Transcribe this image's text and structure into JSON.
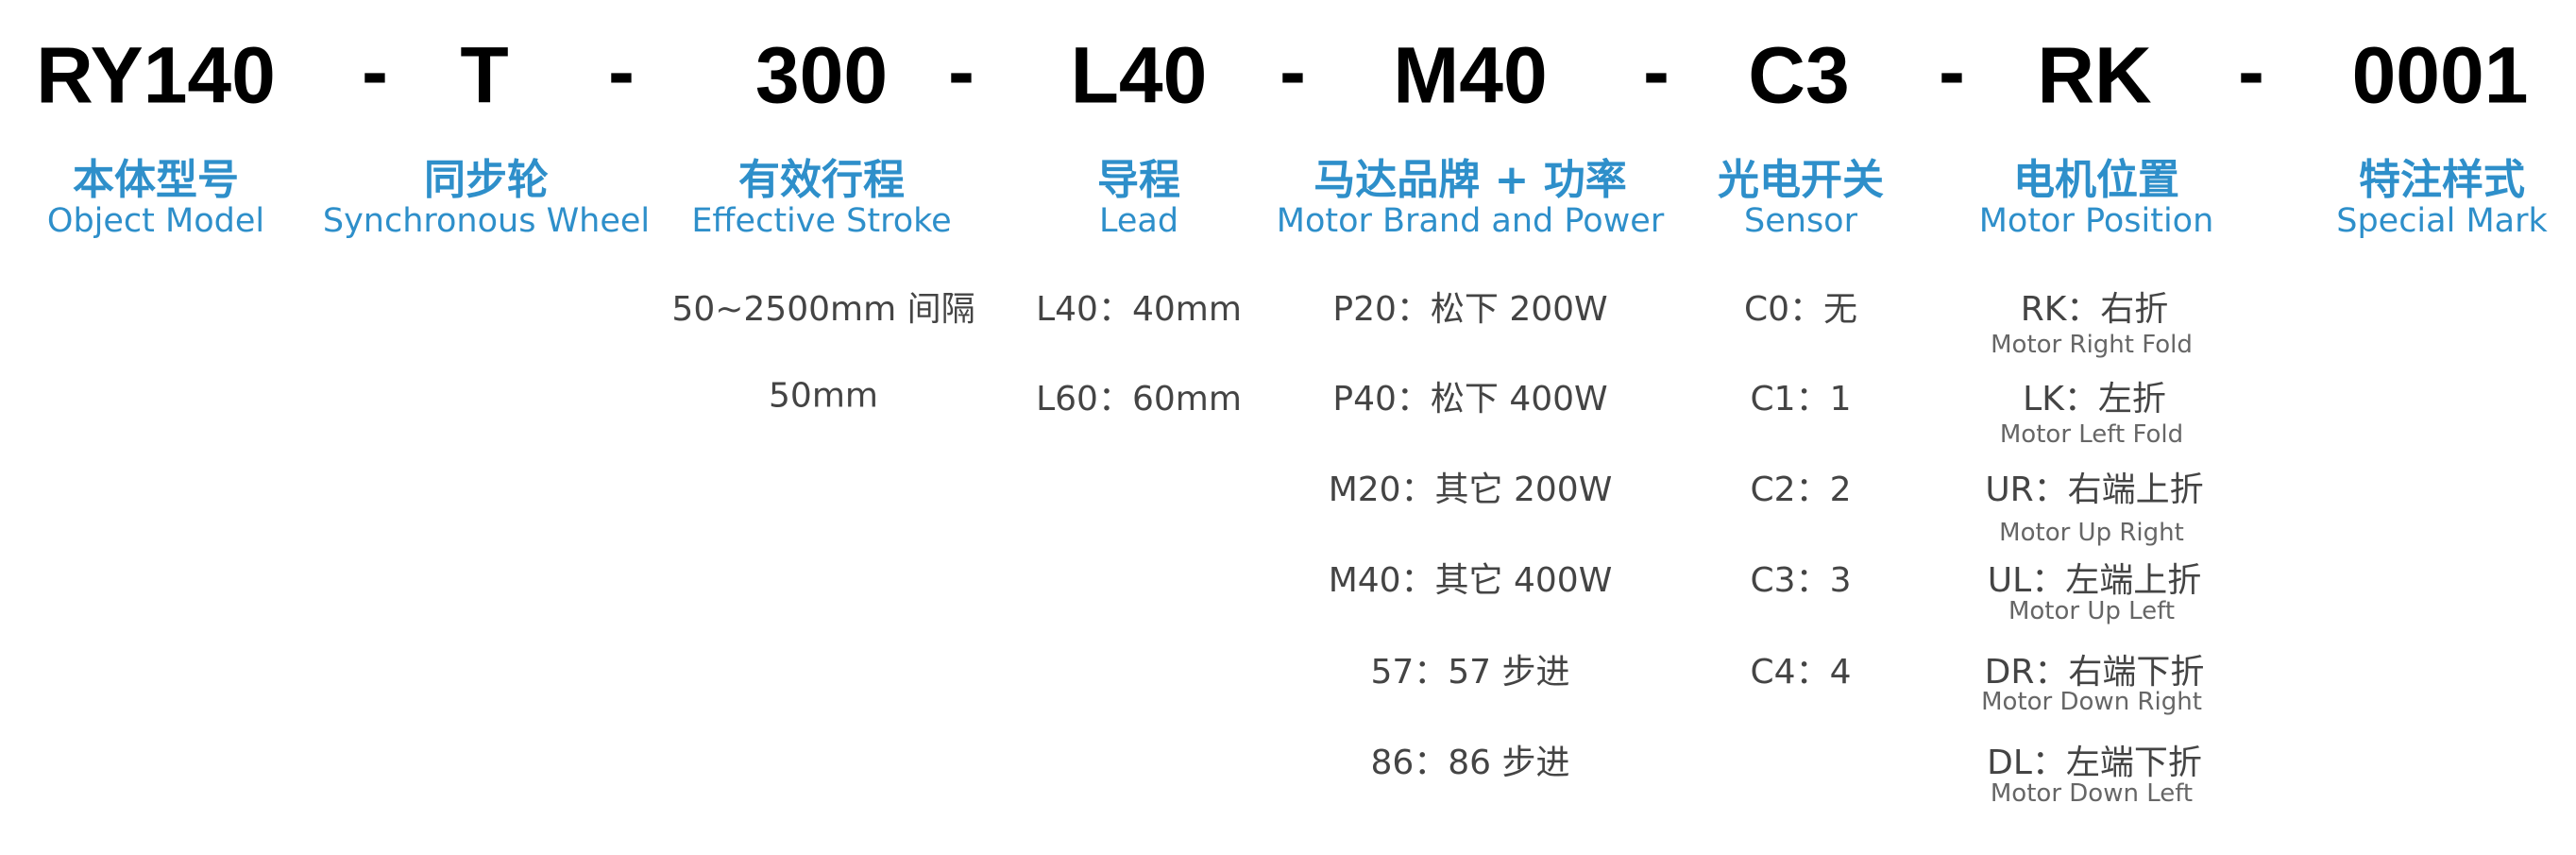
{
  "code_parts": [
    "RY140",
    "T",
    "300",
    "L40",
    "M40",
    "C3",
    "RK",
    "0001"
  ],
  "separator": "-",
  "columns": [
    {
      "zh": "本体型号",
      "en": "Object Model",
      "options": []
    },
    {
      "zh": "同步轮",
      "en": "Synchronous Wheel",
      "options": []
    },
    {
      "zh": "有效行程",
      "en": "Effective Stroke",
      "options": [
        "50~2500mm 间隔",
        "50mm"
      ]
    },
    {
      "zh": "导程",
      "en": "Lead",
      "options": [
        "L40：40mm",
        "L60：60mm"
      ]
    },
    {
      "zh": "马达品牌 + 功率",
      "en": "Motor Brand and Power",
      "options": [
        "P20：松下 200W",
        "P40：松下 400W",
        "M20：其它 200W",
        "M40：其它 400W",
        "57：57 步进",
        "86：86 步进"
      ]
    },
    {
      "zh": "光电开关",
      "en": "Sensor",
      "options": [
        "C0：无",
        "C1：1",
        "C2：2",
        "C3：3",
        "C4：4"
      ]
    },
    {
      "zh": "电机位置",
      "en": "Motor Position",
      "options": [
        {
          "label": "RK：右折",
          "sub": "Motor Right Fold"
        },
        {
          "label": "LK：左折",
          "sub": "Motor Left Fold"
        },
        {
          "label": "UR：右端上折",
          "sub": "Motor Up Right"
        },
        {
          "label": "UL：左端上折",
          "sub": "Motor Up Left"
        },
        {
          "label": "DR：右端下折",
          "sub": "Motor Down Right"
        },
        {
          "label": "DL：左端下折",
          "sub": "Motor Down Left"
        }
      ]
    },
    {
      "zh": "特注样式",
      "en": "Special Mark",
      "options": []
    }
  ],
  "colors": {
    "accent": "#2e8fca",
    "text": "#444444"
  }
}
